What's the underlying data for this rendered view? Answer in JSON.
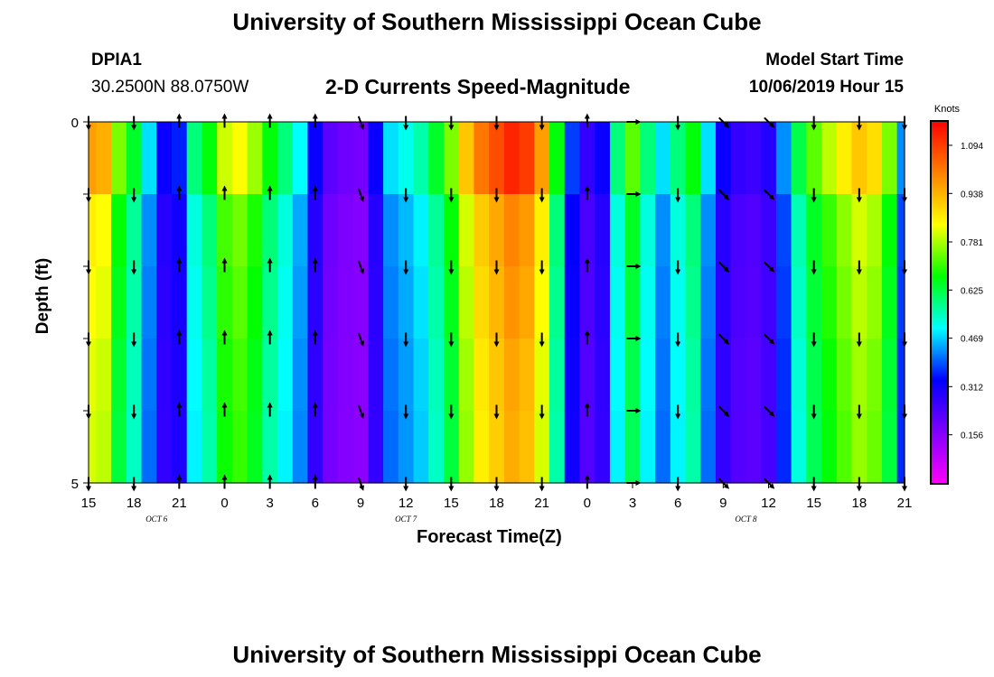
{
  "header": {
    "title": "University of Southern Mississippi Ocean Cube",
    "station_id": "DPIA1",
    "coordinates": "30.2500N 88.0750W",
    "subtitle": "2-D Currents Speed-Magnitude",
    "model_start_label": "Model Start Time",
    "model_start_value": "10/06/2019 Hour 15"
  },
  "footer": {
    "title": "University of Southern Mississippi Ocean Cube"
  },
  "chart_data": {
    "type": "heatmap",
    "title": "2-D Currents Speed-Magnitude",
    "xlabel": "Forecast Time(Z)",
    "ylabel": "Depth (ft)",
    "x_tick_labels": [
      "15",
      "18",
      "21",
      "0",
      "3",
      "6",
      "9",
      "12",
      "15",
      "18",
      "21",
      "0",
      "3",
      "6",
      "9",
      "12",
      "15",
      "18",
      "21"
    ],
    "x_tick_hours": [
      0,
      3,
      6,
      9,
      12,
      15,
      18,
      21,
      24,
      27,
      30,
      33,
      36,
      39,
      42,
      45,
      48,
      51,
      54
    ],
    "x_range_hours": [
      0,
      54
    ],
    "date_labels": [
      {
        "text": "OCT 6",
        "hour": 4.5
      },
      {
        "text": "OCT 7",
        "hour": 21
      },
      {
        "text": "OCT 8",
        "hour": 43.5
      }
    ],
    "y_tick_labels": [
      "0",
      "5"
    ],
    "y_range_ft": [
      0,
      5
    ],
    "colorbar": {
      "unit": "Knots",
      "min": 0.0,
      "max": 1.17,
      "tick_values": [
        1.094,
        0.938,
        0.781,
        0.625,
        0.469,
        0.312,
        0.156
      ],
      "tick_labels": [
        "1.094",
        "0.938",
        "0.781",
        "0.625",
        "0.469",
        "0.312",
        "0.156"
      ],
      "colors": [
        "#ff00ff",
        "#8000ff",
        "#0000ff",
        "#00ffff",
        "#00ff00",
        "#ffff00",
        "#ff8000",
        "#ff0000"
      ]
    },
    "column_hours": [
      0,
      1,
      2,
      3,
      4,
      5,
      6,
      7,
      8,
      9,
      10,
      11,
      12,
      13,
      14,
      15,
      16,
      17,
      18,
      19,
      20,
      21,
      22,
      23,
      24,
      25,
      26,
      27,
      28,
      29,
      30,
      31,
      32,
      33,
      34,
      35,
      36,
      37,
      38,
      39,
      40,
      41,
      42,
      43,
      44,
      45,
      46,
      47,
      48,
      49,
      50,
      51,
      52,
      53,
      54
    ],
    "speed_knots_by_hour": [
      0.9,
      0.88,
      0.7,
      0.6,
      0.45,
      0.3,
      0.33,
      0.55,
      0.62,
      0.75,
      0.78,
      0.72,
      0.62,
      0.55,
      0.47,
      0.3,
      0.2,
      0.18,
      0.17,
      0.3,
      0.45,
      0.48,
      0.52,
      0.6,
      0.7,
      0.85,
      0.95,
      1.0,
      1.05,
      1.02,
      0.9,
      0.62,
      0.35,
      0.25,
      0.3,
      0.55,
      0.68,
      0.55,
      0.45,
      0.55,
      0.62,
      0.45,
      0.3,
      0.25,
      0.24,
      0.27,
      0.4,
      0.58,
      0.68,
      0.74,
      0.8,
      0.85,
      0.82,
      0.7,
      0.4
    ],
    "depth_row_factors": [
      1.07,
      0.95,
      0.93,
      0.91,
      0.9
    ],
    "arrow_hours": [
      0,
      3,
      6,
      9,
      12,
      15,
      18,
      21,
      24,
      27,
      30,
      33,
      36,
      39,
      42,
      45,
      48,
      51,
      54
    ],
    "arrow_depths_ft": [
      0,
      1,
      2,
      3,
      4,
      5
    ],
    "arrow_directions_deg": [
      180,
      180,
      0,
      0,
      0,
      0,
      160,
      180,
      180,
      180,
      180,
      0,
      90,
      180,
      135,
      135,
      180,
      180,
      180
    ],
    "grid": false
  }
}
